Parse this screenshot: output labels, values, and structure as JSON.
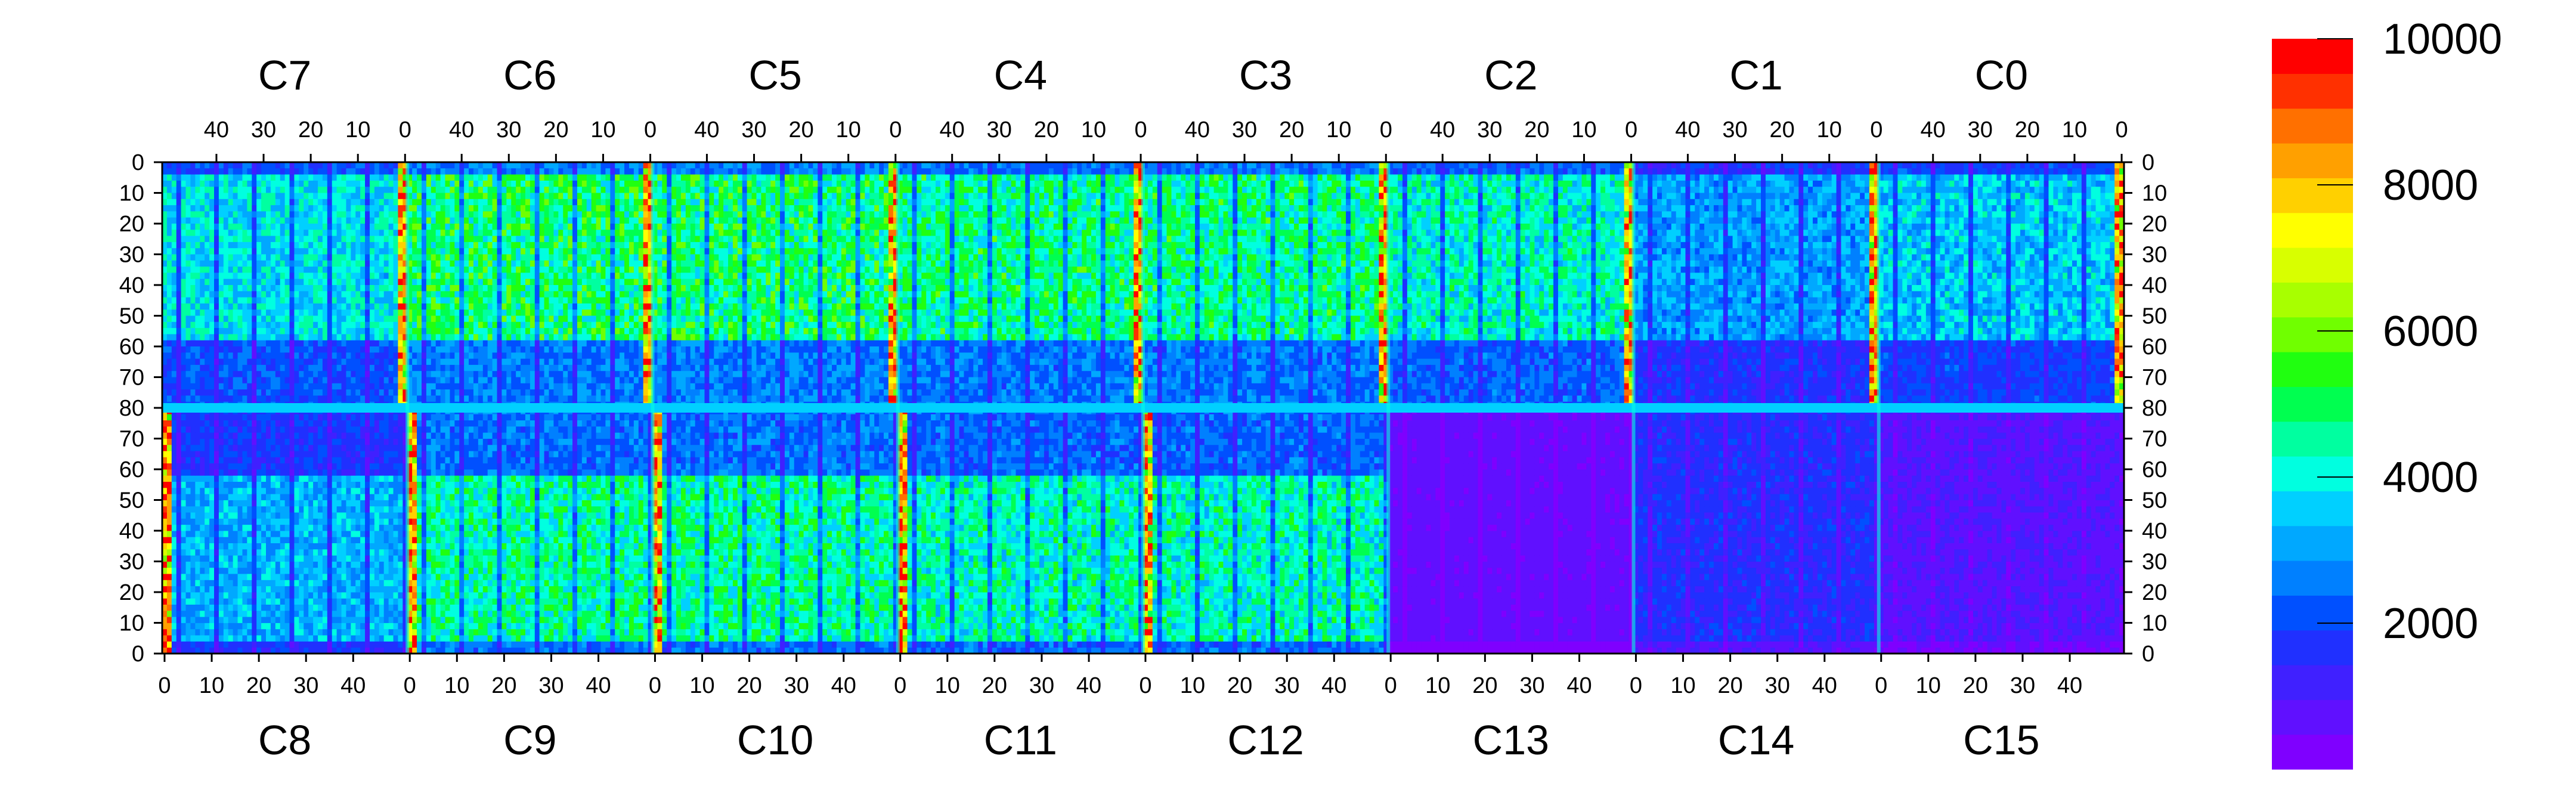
{
  "chart_data": {
    "type": "heatmap",
    "title": "",
    "xlabel": "",
    "ylabel": "",
    "chips_top": [
      "C7",
      "C6",
      "C5",
      "C4",
      "C3",
      "C2",
      "C1",
      "C0"
    ],
    "chips_bottom": [
      "C8",
      "C9",
      "C10",
      "C11",
      "C12",
      "C13",
      "C14",
      "C15"
    ],
    "x_ticks_top": [
      "40",
      "30",
      "20",
      "10",
      "0"
    ],
    "x_ticks_bottom": [
      "0",
      "10",
      "20",
      "30",
      "40"
    ],
    "y_ticks": [
      "0",
      "10",
      "20",
      "30",
      "40",
      "50",
      "60",
      "70",
      "80",
      "70",
      "60",
      "50",
      "40",
      "30",
      "20",
      "10",
      "0"
    ],
    "columns_per_chip": 52,
    "rows_per_half": 80,
    "colorbar": {
      "min": 0,
      "max": 10000,
      "ticks": [
        "2000",
        "4000",
        "6000",
        "8000",
        "10000"
      ],
      "colors": [
        "#7f00ff",
        "#6010ff",
        "#4020ff",
        "#2030ff",
        "#0050ff",
        "#0080ff",
        "#00a8ff",
        "#00d0ff",
        "#00ffe0",
        "#00ffa0",
        "#00ff50",
        "#20ff10",
        "#70ff00",
        "#a8ff00",
        "#d8ff00",
        "#ffff00",
        "#ffd000",
        "#ffa000",
        "#ff7000",
        "#ff3000",
        "#ff0000"
      ]
    },
    "summary_levels": {
      "C7": 3800,
      "C6": 4800,
      "C5": 4800,
      "C4": 4600,
      "C3": 4600,
      "C2": 4200,
      "C1": 3000,
      "C0": 3500,
      "C8": 3200,
      "C9": 4500,
      "C10": 4500,
      "C11": 4300,
      "C12": 4300,
      "C13": 600,
      "C14": 1600,
      "C15": 900
    }
  }
}
